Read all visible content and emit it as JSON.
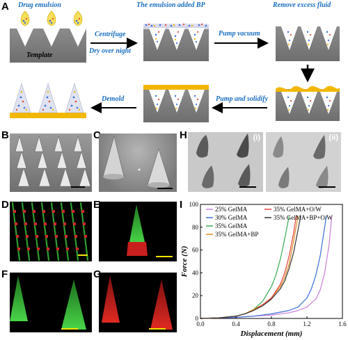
{
  "panel_labels": {
    "A": "A",
    "B": "B",
    "C": "C",
    "D": "D",
    "E": "E",
    "F": "F",
    "G": "G",
    "H": "H",
    "I": "I"
  },
  "schematic": {
    "step_drug_emulsion": "Drug emulsion",
    "template_label": "Template",
    "step_emulsion_added": "The emulsion added BP",
    "step_remove_fluid": "Remove excess fluid",
    "arrow_centrifuge": "Centrifuge",
    "arrow_dry": "Dry over night",
    "arrow_pump_vacuum": "Pump vacuum",
    "arrow_pump_solidify": "Pump and solidify",
    "arrow_demold": "Demold"
  },
  "panel_h": {
    "label_i": "(i)",
    "label_ii": "(ii)"
  },
  "colors": {
    "blue_text": "#1a6fc0",
    "mold_gray": "#7f7f7f",
    "bp_yellow": "#f2b705",
    "scale_bar": "#ffffff",
    "scale_bar_yellow": "#f5e400"
  },
  "chart_data": {
    "type": "line",
    "title": "",
    "xlabel": "Displacement (mm)",
    "ylabel": "Force (N)",
    "xlim": [
      0.0,
      1.6
    ],
    "ylim": [
      0,
      100
    ],
    "xticks": [
      "0.0",
      "0.4",
      "0.8",
      "1.2",
      "1.6"
    ],
    "yticks": [
      "0",
      "20",
      "40",
      "60",
      "80",
      "100"
    ],
    "legend_position": "top",
    "series": [
      {
        "name": "25% GelMA",
        "color": "#c77dd9",
        "x": [
          0.0,
          0.2,
          0.4,
          0.6,
          0.8,
          1.0,
          1.1,
          1.2,
          1.3,
          1.35,
          1.4,
          1.45,
          1.48
        ],
        "y": [
          0,
          0.5,
          1,
          2,
          3,
          5,
          7,
          10,
          17,
          25,
          40,
          65,
          90
        ]
      },
      {
        "name": "30% GelMA",
        "color": "#3a6fd8",
        "x": [
          0.0,
          0.2,
          0.4,
          0.6,
          0.8,
          1.0,
          1.1,
          1.2,
          1.25,
          1.3,
          1.35,
          1.39,
          1.42
        ],
        "y": [
          0,
          0.5,
          1,
          2,
          4,
          7,
          10,
          18,
          26,
          38,
          55,
          75,
          90
        ]
      },
      {
        "name": "35% GelMA",
        "color": "#3aaa52",
        "x": [
          0.0,
          0.2,
          0.4,
          0.5,
          0.6,
          0.7,
          0.8,
          0.85,
          0.9,
          0.95,
          1.0
        ],
        "y": [
          0,
          0.5,
          2,
          4,
          8,
          15,
          28,
          38,
          52,
          70,
          90
        ]
      },
      {
        "name": "35% GelMA+BP",
        "color": "#d98a1e",
        "x": [
          0.0,
          0.2,
          0.4,
          0.5,
          0.6,
          0.7,
          0.8,
          0.9,
          0.95,
          1.0,
          1.05,
          1.1
        ],
        "y": [
          0,
          0.5,
          2,
          4,
          8,
          12,
          18,
          28,
          36,
          48,
          68,
          90
        ]
      },
      {
        "name": "35% GelMA+O/W",
        "color": "#e8423a",
        "x": [
          0.0,
          0.2,
          0.4,
          0.5,
          0.6,
          0.7,
          0.8,
          0.9,
          0.95,
          1.0,
          1.05,
          1.08
        ],
        "y": [
          0,
          0.5,
          2,
          4,
          7,
          12,
          18,
          30,
          40,
          55,
          75,
          90
        ]
      },
      {
        "name": "35% GelMA+BP+O/W",
        "color": "#333333",
        "x": [
          0.0,
          0.2,
          0.4,
          0.5,
          0.6,
          0.7,
          0.8,
          0.9,
          0.95,
          1.0,
          1.05,
          1.1,
          1.13
        ],
        "y": [
          0,
          0.5,
          2,
          4,
          7,
          11,
          17,
          26,
          33,
          44,
          58,
          78,
          90
        ]
      }
    ]
  }
}
